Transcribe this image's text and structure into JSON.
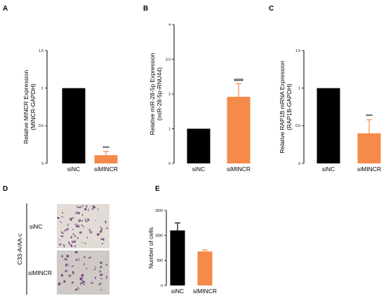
{
  "panels": {
    "A": "A",
    "B": "B",
    "C": "C",
    "D": "D",
    "E": "E"
  },
  "panel_d": {
    "cell_line": "C33-A/AA-c",
    "rows": [
      "siNC",
      "siMINCR"
    ]
  },
  "colors": {
    "siNC": "#000000",
    "siMINCR": "#f58a4a",
    "micrograph_bg": "#d8d3cf",
    "stain": "#6b3b78"
  },
  "chart_data": [
    {
      "id": "A",
      "type": "bar",
      "categories": [
        "siNC",
        "siMINCR"
      ],
      "values": [
        1.0,
        0.11
      ],
      "errors": [
        0,
        0.05
      ],
      "ylabel_lines": [
        "Relative MINCR Expression",
        "(MINCR-GAPDH)"
      ],
      "ylim": [
        0,
        1.5
      ],
      "yticks": [
        0,
        0.5,
        1,
        1.5
      ],
      "ytick_labels": [
        "0",
        "0.5",
        "1",
        "1.5"
      ],
      "annotations": [
        {
          "category": "siMINCR",
          "text": "****"
        }
      ]
    },
    {
      "id": "B",
      "type": "bar",
      "categories": [
        "siNC",
        "siMINCR"
      ],
      "values": [
        1.0,
        1.92
      ],
      "errors": [
        0,
        0.38
      ],
      "ylabel_lines": [
        "Relative miR-28-5p Expression",
        "(miR-28-5p-RNU44)"
      ],
      "ylim": [
        0,
        4
      ],
      "yticks": [
        0,
        1,
        2,
        3,
        4
      ],
      "ytick_labels": [
        "0",
        "1",
        "2",
        "3.0",
        "4"
      ],
      "annotations": [
        {
          "category": "siMINCR",
          "text": "####"
        }
      ]
    },
    {
      "id": "C",
      "type": "bar",
      "categories": [
        "siNC",
        "siMINCR"
      ],
      "values": [
        1.0,
        0.4
      ],
      "errors": [
        0,
        0.18
      ],
      "ylabel_lines": [
        "Relative RAP1B mRNA Expression",
        "(RAP1B-GAPDH)"
      ],
      "ylim": [
        0,
        1.5
      ],
      "yticks": [
        0,
        0.5,
        1,
        1.5
      ],
      "ytick_labels": [
        "0",
        "0.5",
        "1",
        "1.5"
      ],
      "annotations": [
        {
          "category": "siMINCR",
          "text": "****"
        }
      ]
    },
    {
      "id": "E",
      "type": "bar",
      "categories": [
        "siNC",
        "siMINCR"
      ],
      "values": [
        1100,
        680
      ],
      "errors": [
        150,
        30
      ],
      "ylabel_lines": [
        "Number of cells"
      ],
      "ylim": [
        0,
        1500
      ],
      "yticks": [
        0,
        500,
        1000,
        1500
      ],
      "ytick_labels": [
        "0",
        "500",
        "1000",
        "1500"
      ],
      "annotations": []
    }
  ]
}
